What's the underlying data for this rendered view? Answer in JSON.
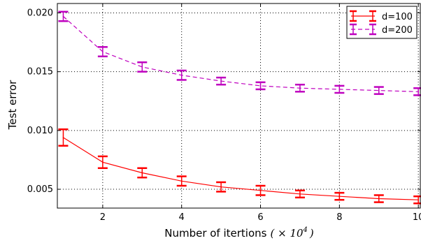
{
  "chart_data": {
    "type": "line",
    "xlabel": "Number of itertions",
    "xlabel_unit": "( × 10",
    "xlabel_exponent": "4",
    "xlabel_close": ")",
    "ylabel": "Test error",
    "xlim": [
      0.85,
      10.05
    ],
    "ylim": [
      0.0034,
      0.0208
    ],
    "xticks": [
      2,
      4,
      6,
      8,
      10
    ],
    "xtick_labels": [
      "2",
      "4",
      "6",
      "8",
      "10"
    ],
    "yticks": [
      0.005,
      0.01,
      0.015,
      0.02
    ],
    "ytick_labels": [
      "0.005",
      "0.010",
      "0.015",
      "0.020"
    ],
    "grid": true,
    "legend_position": "top-right",
    "x": [
      1,
      2,
      3,
      4,
      5,
      6,
      7,
      8,
      9,
      10
    ],
    "series": [
      {
        "name": "d=100",
        "color": "#ff0000",
        "line_style": "solid",
        "values": [
          0.0094,
          0.0073,
          0.0064,
          0.0057,
          0.0052,
          0.0049,
          0.0046,
          0.0044,
          0.0042,
          0.0041
        ],
        "errors": [
          0.0007,
          0.0005,
          0.0004,
          0.0004,
          0.0004,
          0.0004,
          0.0003,
          0.0003,
          0.0003,
          0.0003
        ]
      },
      {
        "name": "d=200",
        "color": "#bf00bf",
        "line_style": "dashed",
        "values": [
          0.0197,
          0.0167,
          0.0154,
          0.0147,
          0.0142,
          0.0138,
          0.0136,
          0.0135,
          0.0134,
          0.0133
        ],
        "errors": [
          0.0004,
          0.0004,
          0.0004,
          0.0004,
          0.0003,
          0.0003,
          0.0003,
          0.0003,
          0.0003,
          0.0003
        ]
      }
    ]
  }
}
